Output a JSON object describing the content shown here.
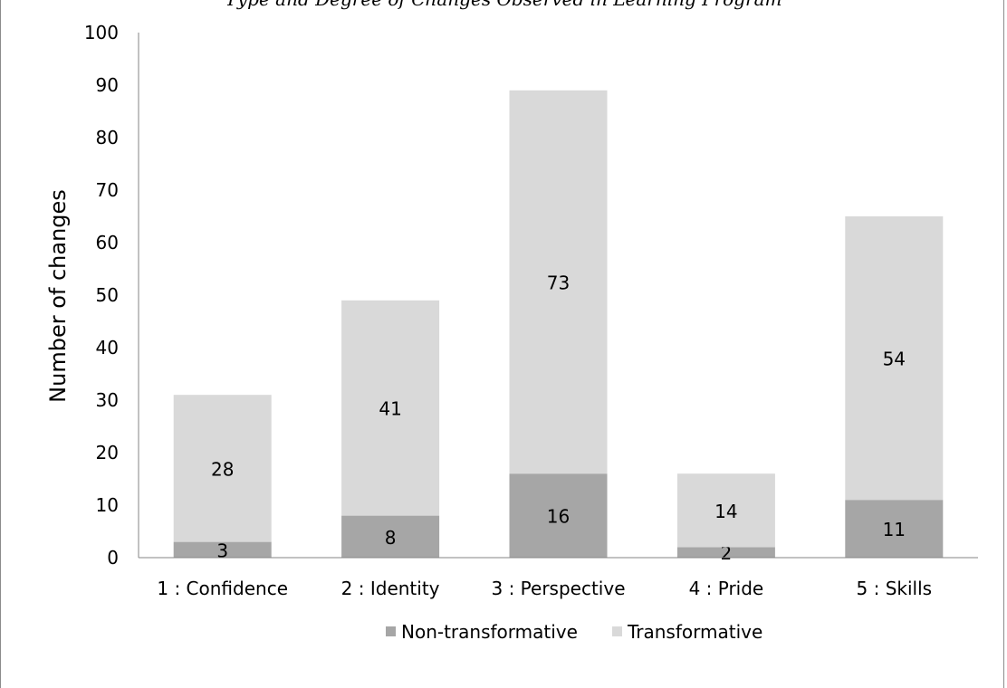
{
  "chart_data": {
    "type": "bar",
    "stacked": true,
    "title": "Type and Degree of Changes Observed in Learning Program",
    "xlabel": "",
    "ylabel": "Number of changes",
    "ylim": [
      0,
      100
    ],
    "yticks": [
      0,
      10,
      20,
      30,
      40,
      50,
      60,
      70,
      80,
      90,
      100
    ],
    "categories": [
      "1 : Confidence",
      "2 : Identity",
      "3 : Perspective",
      "4 : Pride",
      "5 : Skills"
    ],
    "series": [
      {
        "name": "Non-transformative",
        "color": "#a6a6a6",
        "values": [
          3,
          8,
          16,
          2,
          11
        ]
      },
      {
        "name": "Transformative",
        "color": "#d9d9d9",
        "values": [
          28,
          41,
          73,
          14,
          54
        ]
      }
    ],
    "legend_position": "bottom",
    "grid": false
  }
}
